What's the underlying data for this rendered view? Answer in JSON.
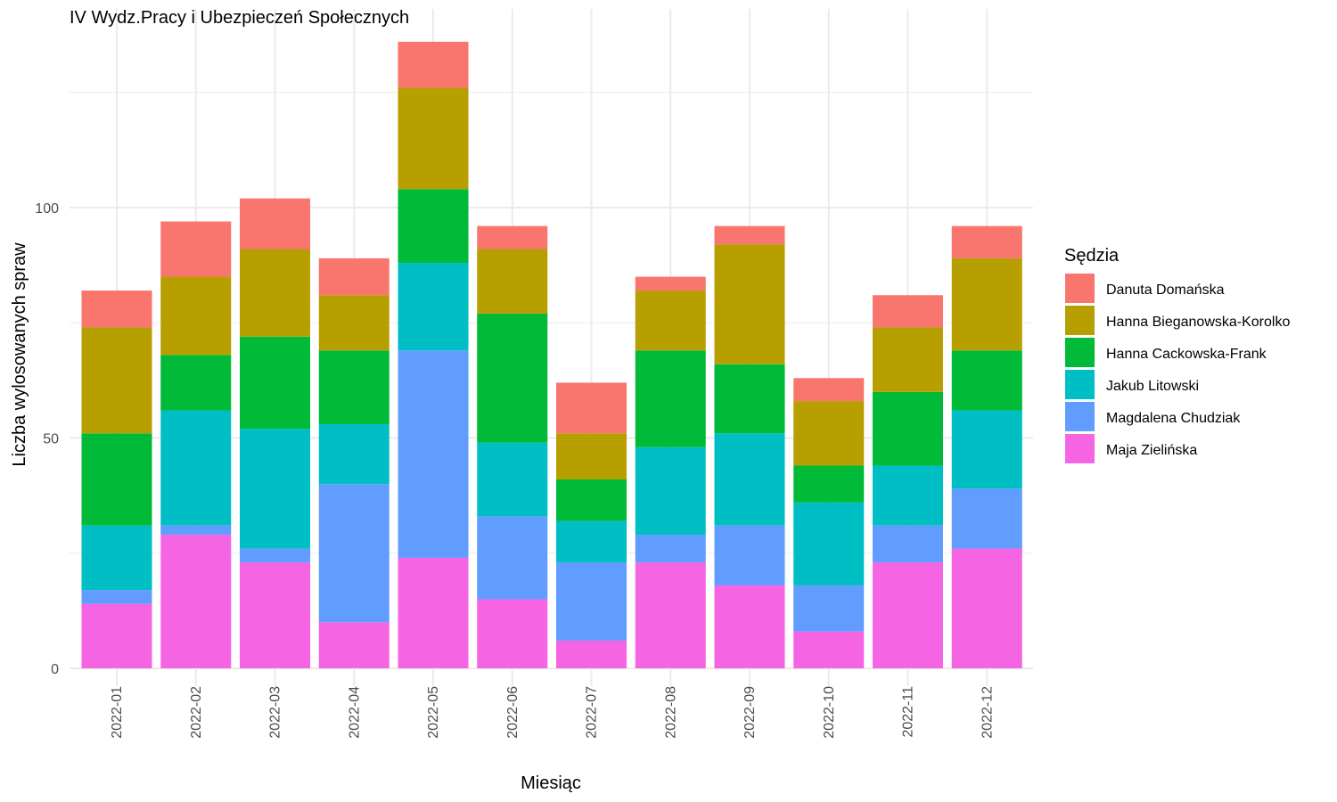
{
  "chart_data": {
    "type": "bar",
    "stacked": true,
    "title": "IV Wydz.Pracy i Ubezpieczeń Społecznych",
    "xlabel": "Miesiąc",
    "ylabel": "Liczba wylosowanych spraw",
    "ylim": [
      0,
      136
    ],
    "yticks": [
      0,
      50,
      100
    ],
    "grid": true,
    "legend_title": "Sędzia",
    "legend_position": "right",
    "categories": [
      "2022-01",
      "2022-02",
      "2022-03",
      "2022-04",
      "2022-05",
      "2022-06",
      "2022-07",
      "2022-08",
      "2022-09",
      "2022-10",
      "2022-11",
      "2022-12"
    ],
    "series": [
      {
        "name": "Maja Zielińska",
        "color": "#F564E3",
        "values": [
          14,
          29,
          23,
          10,
          24,
          15,
          6,
          23,
          18,
          8,
          23,
          26
        ]
      },
      {
        "name": "Magdalena Chudziak",
        "color": "#619CFF",
        "values": [
          3,
          2,
          3,
          30,
          45,
          18,
          17,
          6,
          13,
          10,
          8,
          13
        ]
      },
      {
        "name": "Jakub Litowski",
        "color": "#00BFC4",
        "values": [
          14,
          25,
          26,
          13,
          19,
          16,
          9,
          19,
          20,
          18,
          13,
          17
        ]
      },
      {
        "name": "Hanna Cackowska-Frank",
        "color": "#00BA38",
        "values": [
          20,
          12,
          20,
          16,
          16,
          28,
          9,
          21,
          15,
          8,
          16,
          13
        ]
      },
      {
        "name": "Hanna Bieganowska-Korolko",
        "color": "#B79F00",
        "values": [
          23,
          17,
          19,
          12,
          22,
          14,
          10,
          13,
          26,
          14,
          14,
          20
        ]
      },
      {
        "name": "Danuta Domańska",
        "color": "#F8766D",
        "values": [
          8,
          12,
          11,
          8,
          10,
          5,
          11,
          3,
          4,
          5,
          7,
          7
        ]
      }
    ],
    "legend_order": [
      "Danuta Domańska",
      "Hanna Bieganowska-Korolko",
      "Hanna Cackowska-Frank",
      "Jakub Litowski",
      "Magdalena Chudziak",
      "Maja Zielińska"
    ]
  }
}
